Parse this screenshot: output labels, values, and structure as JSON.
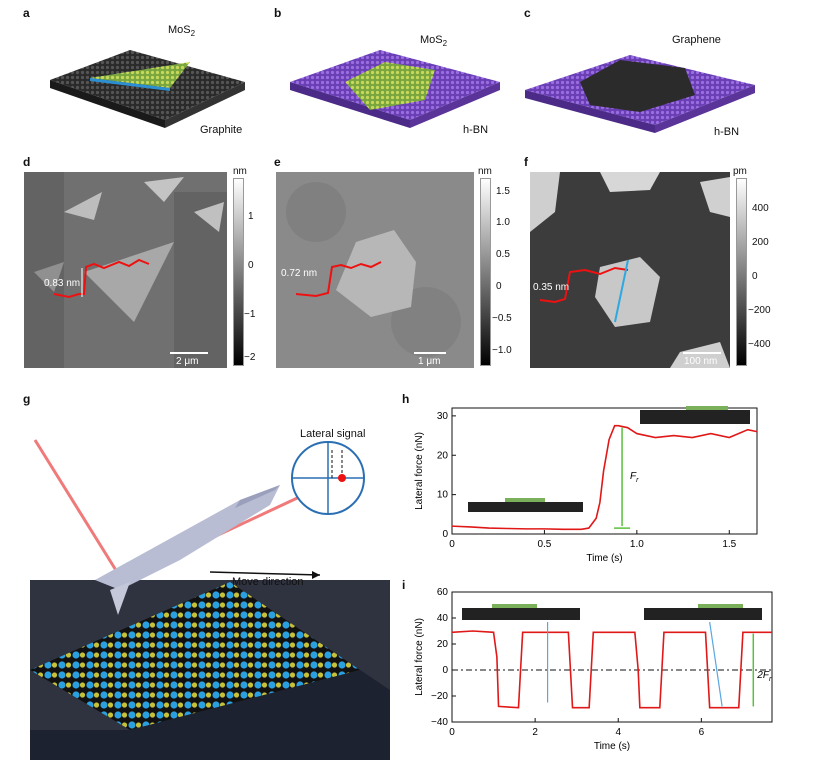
{
  "panels": {
    "a": {
      "label": "a",
      "top_text": "MoS",
      "top_sub": "2",
      "bottom_text": "Graphite"
    },
    "b": {
      "label": "b",
      "top_text": "MoS",
      "top_sub": "2",
      "bottom_text": "h-BN"
    },
    "c": {
      "label": "c",
      "top_text": "Graphene",
      "bottom_text": "h-BN"
    },
    "d": {
      "label": "d",
      "step": "0.83 nm",
      "scale": "2 μm",
      "unit": "nm",
      "ticks": [
        "1",
        "0",
        "−1",
        "−2"
      ]
    },
    "e": {
      "label": "e",
      "step": "0.72 nm",
      "scale": "1 μm",
      "unit": "nm",
      "ticks": [
        "1.5",
        "1.0",
        "0.5",
        "0",
        "−0.5",
        "−1.0"
      ]
    },
    "f": {
      "label": "f",
      "step": "0.35 nm",
      "scale": "100 nm",
      "unit": "pm",
      "ticks": [
        "400",
        "200",
        "0",
        "−200",
        "−400"
      ]
    },
    "g": {
      "label": "g",
      "lateral_signal": "Lateral signal",
      "move_direction": "Move direction"
    },
    "h": {
      "label": "h",
      "force_label": "F",
      "force_sub": "r"
    },
    "i": {
      "label": "i",
      "force_label": "2F",
      "force_sub": "r"
    }
  },
  "chart_data": [
    {
      "type": "line",
      "panel": "h",
      "xlabel": "Time (s)",
      "ylabel": "Lateral force (nN)",
      "xlim": [
        0,
        1.65
      ],
      "ylim": [
        0,
        32
      ],
      "xticks": [
        "0",
        "0.5",
        "1.0",
        "1.5"
      ],
      "yticks": [
        "0",
        "10",
        "20",
        "30"
      ],
      "series": [
        {
          "x": [
            0,
            0.1,
            0.2,
            0.3,
            0.4,
            0.5,
            0.6,
            0.7,
            0.74,
            0.78,
            0.8,
            0.82,
            0.85,
            0.88,
            0.9,
            0.95,
            1.0,
            1.05,
            1.1,
            1.2,
            1.3,
            1.4,
            1.5,
            1.6,
            1.65
          ],
          "y": [
            2,
            1.8,
            1.5,
            1.4,
            1.3,
            1.3,
            1.2,
            1.2,
            1.5,
            4,
            8,
            16,
            24,
            27.5,
            27.5,
            27,
            25.5,
            25,
            24.5,
            25,
            24.5,
            25.5,
            24.5,
            26.5,
            26
          ]
        }
      ]
    },
    {
      "type": "line",
      "panel": "i",
      "xlabel": "Time (s)",
      "ylabel": "Lateral force (nN)",
      "xlim": [
        0,
        7.7
      ],
      "ylim": [
        -40,
        60
      ],
      "xticks": [
        "0",
        "2",
        "4",
        "6"
      ],
      "yticks": [
        "−40",
        "−20",
        "0",
        "20",
        "40",
        "60"
      ],
      "series": [
        {
          "x": [
            0,
            0.5,
            1.0,
            1.08,
            1.12,
            1.6,
            1.65,
            1.7,
            2.8,
            2.85,
            2.9,
            3.3,
            3.35,
            3.4,
            4.4,
            4.48,
            4.52,
            5.0,
            5.05,
            5.1,
            6.1,
            6.15,
            6.2,
            6.9,
            6.95,
            7.0,
            7.7
          ],
          "y": [
            29,
            30,
            29,
            10,
            -28,
            -29,
            0,
            29,
            29,
            0,
            -29,
            -29,
            0,
            29,
            29,
            0,
            -29,
            -29,
            0,
            29,
            29,
            0,
            -29,
            -29,
            0,
            29,
            29
          ]
        }
      ]
    }
  ]
}
